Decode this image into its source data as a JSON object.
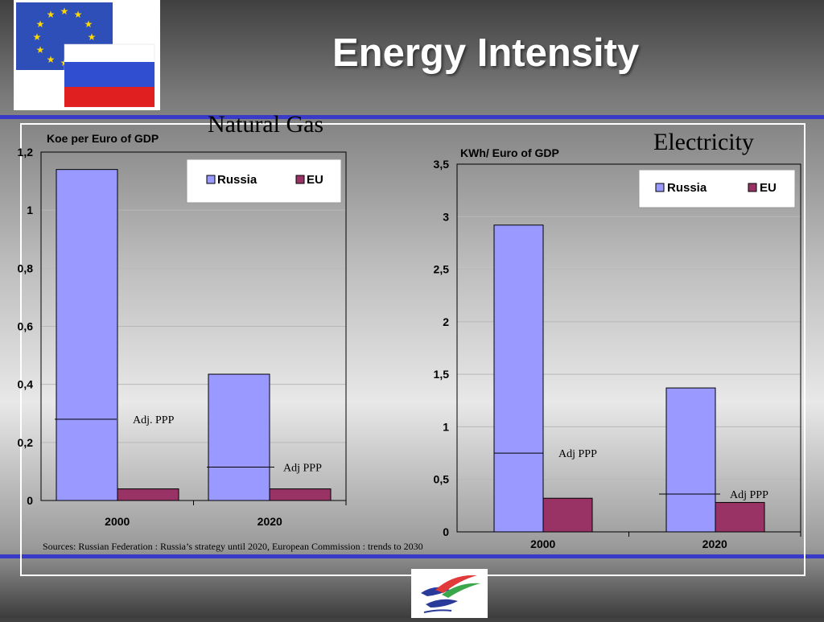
{
  "slide": {
    "title": "Energy Intensity",
    "sources": "Sources: Russian Federation : Russia’s strategy until 2020, European Commission : trends to 2030"
  },
  "colors": {
    "russia": "#9999ff",
    "eu": "#993366",
    "rule": "#3a3ac8"
  },
  "chart_data": [
    {
      "type": "bar",
      "title": "Natural Gas",
      "ylabel": "Koe per Euro of GDP",
      "categories": [
        "2000",
        "2020"
      ],
      "series": [
        {
          "name": "Russia",
          "values": [
            1.14,
            0.435
          ]
        },
        {
          "name": "EU",
          "values": [
            0.04,
            0.04
          ]
        }
      ],
      "ylim": [
        0,
        1.2
      ],
      "yticks": [
        {
          "v": 0,
          "label": "0"
        },
        {
          "v": 0.2,
          "label": "0,2"
        },
        {
          "v": 0.4,
          "label": "0,4"
        },
        {
          "v": 0.6,
          "label": "0,6"
        },
        {
          "v": 0.8,
          "label": "0,8"
        },
        {
          "v": 1,
          "label": "1"
        },
        {
          "v": 1.2,
          "label": "1,2"
        }
      ],
      "annotations": [
        {
          "category": 0,
          "value": 0.28,
          "text": "Adj. PPP"
        },
        {
          "category": 1,
          "value": 0.115,
          "text": "Adj PPP"
        }
      ],
      "legend": "top-right",
      "grid": true
    },
    {
      "type": "bar",
      "title": "Electricity",
      "ylabel": "KWh/ Euro of GDP",
      "categories": [
        "2000",
        "2020"
      ],
      "series": [
        {
          "name": "Russia",
          "values": [
            2.92,
            1.37
          ]
        },
        {
          "name": "EU",
          "values": [
            0.32,
            0.28
          ]
        }
      ],
      "ylim": [
        0,
        3.5
      ],
      "yticks": [
        {
          "v": 0,
          "label": "0"
        },
        {
          "v": 0.5,
          "label": "0,5"
        },
        {
          "v": 1,
          "label": "1"
        },
        {
          "v": 1.5,
          "label": "1,5"
        },
        {
          "v": 2,
          "label": "2"
        },
        {
          "v": 2.5,
          "label": "2,5"
        },
        {
          "v": 3,
          "label": "3"
        },
        {
          "v": 3.5,
          "label": "3,5"
        }
      ],
      "annotations": [
        {
          "category": 0,
          "value": 0.75,
          "text": "Adj PPP"
        },
        {
          "category": 1,
          "value": 0.36,
          "text": "Adj PPP"
        }
      ],
      "legend": "top-right",
      "grid": true
    }
  ]
}
